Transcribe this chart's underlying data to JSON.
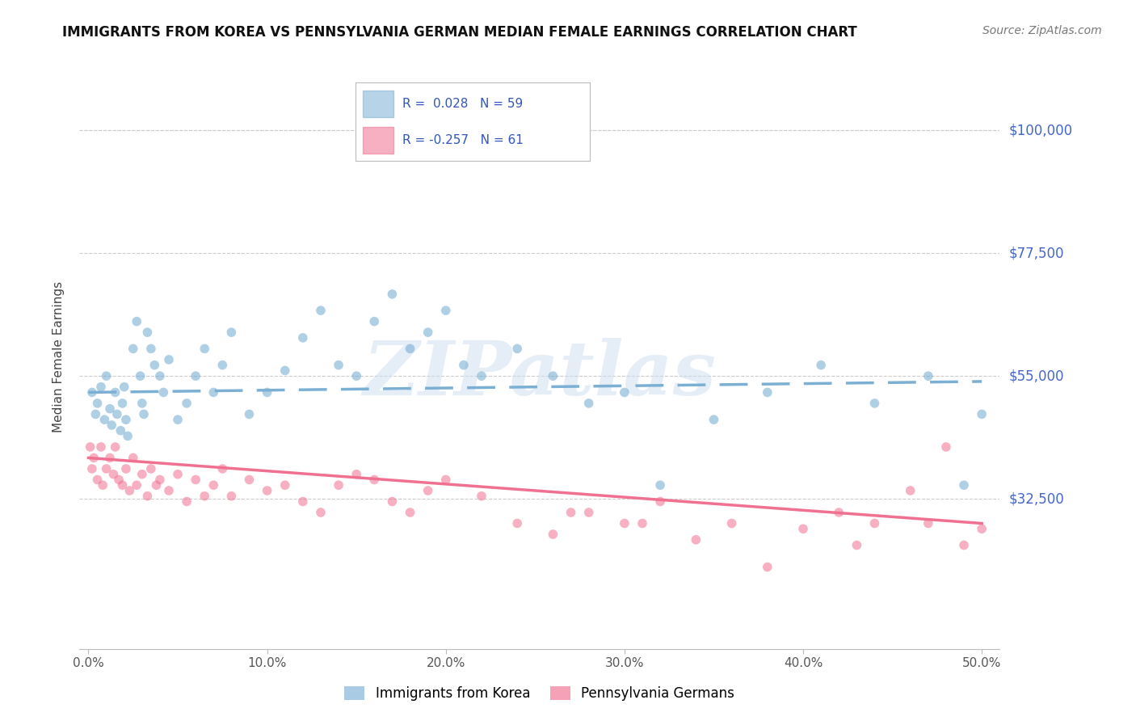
{
  "title": "IMMIGRANTS FROM KOREA VS PENNSYLVANIA GERMAN MEDIAN FEMALE EARNINGS CORRELATION CHART",
  "source_text": "Source: ZipAtlas.com",
  "ylabel": "Median Female Earnings",
  "watermark": "ZIPatlas",
  "korea_color": "#7bafd4",
  "penn_color": "#f07090",
  "background_color": "#ffffff",
  "grid_color": "#cccccc",
  "ytick_color": "#4466cc",
  "ytick_vals": [
    32500,
    55000,
    77500,
    100000
  ],
  "ytick_labels": [
    "$32,500",
    "$55,000",
    "$77,500",
    "$100,000"
  ],
  "ylim": [
    5000,
    112000
  ],
  "xlim": [
    -0.5,
    51
  ],
  "xtick_vals": [
    0,
    10,
    20,
    30,
    40,
    50
  ],
  "xtick_labels": [
    "0.0%",
    "10.0%",
    "20.0%",
    "30.0%",
    "40.0%",
    "50.0%"
  ],
  "legend_r1": "R =  0.028   N = 59",
  "legend_r2": "R = -0.257   N = 61",
  "korea_R": 0.028,
  "penn_R": -0.257,
  "korea_line_intercept": 52000,
  "korea_line_slope": 40,
  "penn_line_intercept": 40000,
  "penn_line_slope": -240,
  "korea_scatter_x": [
    0.2,
    0.4,
    0.5,
    0.7,
    0.9,
    1.0,
    1.2,
    1.3,
    1.5,
    1.6,
    1.8,
    1.9,
    2.0,
    2.1,
    2.2,
    2.5,
    2.7,
    2.9,
    3.0,
    3.1,
    3.3,
    3.5,
    3.7,
    4.0,
    4.2,
    4.5,
    5.0,
    5.5,
    6.0,
    6.5,
    7.0,
    7.5,
    8.0,
    9.0,
    10.0,
    11.0,
    12.0,
    13.0,
    14.0,
    15.0,
    16.0,
    17.0,
    18.0,
    19.0,
    20.0,
    21.0,
    22.0,
    24.0,
    26.0,
    28.0,
    30.0,
    32.0,
    35.0,
    38.0,
    41.0,
    44.0,
    47.0,
    49.0,
    50.0
  ],
  "korea_scatter_y": [
    52000,
    48000,
    50000,
    53000,
    47000,
    55000,
    49000,
    46000,
    52000,
    48000,
    45000,
    50000,
    53000,
    47000,
    44000,
    60000,
    65000,
    55000,
    50000,
    48000,
    63000,
    60000,
    57000,
    55000,
    52000,
    58000,
    47000,
    50000,
    55000,
    60000,
    52000,
    57000,
    63000,
    48000,
    52000,
    56000,
    62000,
    67000,
    57000,
    55000,
    65000,
    70000,
    60000,
    63000,
    67000,
    57000,
    55000,
    60000,
    55000,
    50000,
    52000,
    35000,
    47000,
    52000,
    57000,
    50000,
    55000,
    35000,
    48000
  ],
  "penn_scatter_x": [
    0.1,
    0.2,
    0.3,
    0.5,
    0.7,
    0.8,
    1.0,
    1.2,
    1.4,
    1.5,
    1.7,
    1.9,
    2.1,
    2.3,
    2.5,
    2.7,
    3.0,
    3.3,
    3.5,
    3.8,
    4.0,
    4.5,
    5.0,
    5.5,
    6.0,
    6.5,
    7.0,
    7.5,
    8.0,
    9.0,
    10.0,
    11.0,
    12.0,
    13.0,
    14.0,
    15.0,
    16.0,
    17.0,
    18.0,
    19.0,
    20.0,
    22.0,
    24.0,
    26.0,
    28.0,
    30.0,
    32.0,
    34.0,
    36.0,
    38.0,
    40.0,
    42.0,
    44.0,
    46.0,
    47.0,
    48.0,
    49.0,
    50.0,
    27.0,
    31.0,
    43.0
  ],
  "penn_scatter_y": [
    42000,
    38000,
    40000,
    36000,
    42000,
    35000,
    38000,
    40000,
    37000,
    42000,
    36000,
    35000,
    38000,
    34000,
    40000,
    35000,
    37000,
    33000,
    38000,
    35000,
    36000,
    34000,
    37000,
    32000,
    36000,
    33000,
    35000,
    38000,
    33000,
    36000,
    34000,
    35000,
    32000,
    30000,
    35000,
    37000,
    36000,
    32000,
    30000,
    34000,
    36000,
    33000,
    28000,
    26000,
    30000,
    28000,
    32000,
    25000,
    28000,
    20000,
    27000,
    30000,
    28000,
    34000,
    28000,
    42000,
    24000,
    27000,
    30000,
    28000,
    24000
  ]
}
